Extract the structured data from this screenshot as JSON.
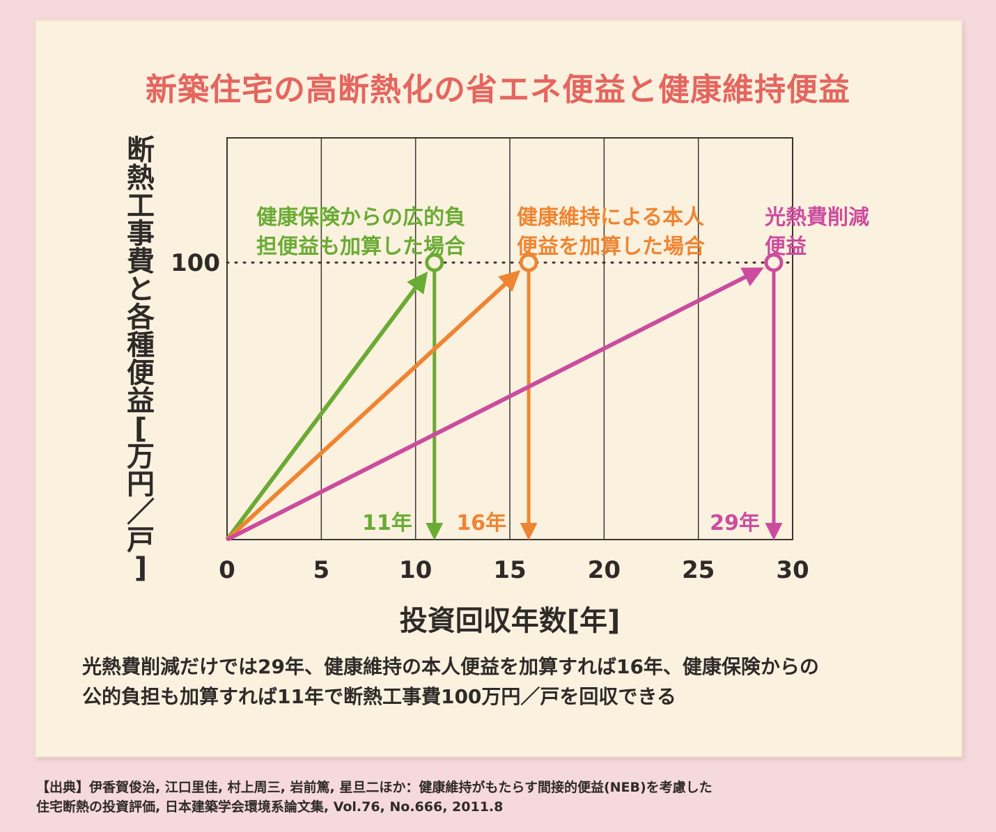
{
  "title": "新築住宅の高断熱化の省エネ便益と健康維持便益",
  "caption_lines": [
    "光熱費削減だけでは29年、健康維持の本人便益を加算すれば16年、健康保険からの",
    "公的負担も加算すれば11年で断熱工事費100万円／戸を回収できる"
  ],
  "source_lines": [
    "【出典】伊香賀俊治, 江口里佳, 村上周三, 岩前篤, 星旦二ほか：健康維持がもたらす間接的便益(NEB)を考慮した",
    "住宅断熱の投資評価, 日本建築学会環境系論文集, Vol.76, No.666, 2011.8"
  ],
  "colors": {
    "title": "#e4665f",
    "green": "#6aab34",
    "orange": "#ee8532",
    "magenta": "#cb4c9e",
    "ink": "#2e2a28",
    "panel": "#fbf1df"
  },
  "chart_data": {
    "type": "line",
    "xlabel": "投資回収年数[年]",
    "ylabel": "断熱工事費と各種便益[万円／戸]",
    "xlim": [
      0,
      30
    ],
    "ylim": [
      0,
      145
    ],
    "x_ticks": [
      "0",
      "5",
      "10",
      "15",
      "20",
      "25",
      "30"
    ],
    "y_ticks": [
      "100"
    ],
    "grid": "vertical",
    "reference_line": {
      "y": 100,
      "style": "dotted"
    },
    "series": [
      {
        "name": "健康保険からの広的負担便益も加算した場合",
        "label_lines": [
          "健康保険からの広的負",
          "担便益も加算した場合"
        ],
        "color": "#6aab34",
        "x": [
          0,
          11
        ],
        "y": [
          0,
          100
        ],
        "payback_label": "11年",
        "payback_year": 11
      },
      {
        "name": "健康維持による本人便益を加算した場合",
        "label_lines": [
          "健康維持による本人",
          "便益を加算した場合"
        ],
        "color": "#ee8532",
        "x": [
          0,
          16
        ],
        "y": [
          0,
          100
        ],
        "payback_label": "16年",
        "payback_year": 16
      },
      {
        "name": "光熱費削減便益",
        "label_lines": [
          "光熱費削減",
          "便益"
        ],
        "color": "#cb4c9e",
        "x": [
          0,
          29
        ],
        "y": [
          0,
          100
        ],
        "payback_label": "29年",
        "payback_year": 29
      }
    ]
  }
}
